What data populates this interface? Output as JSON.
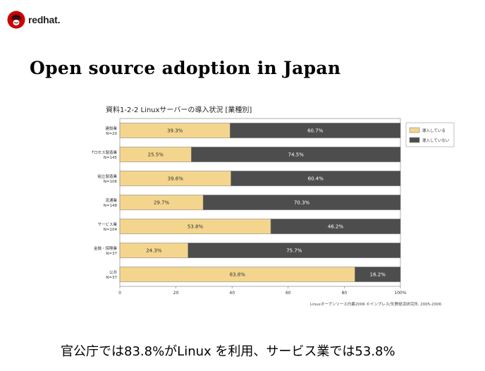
{
  "brand": {
    "name": "redhat."
  },
  "slide": {
    "title": "Open source adoption in Japan",
    "caption": "官公庁では83.8%がLinux を利用、サービス業では53.8%"
  },
  "figure": {
    "title": "資料1-2-2  Linuxサーバーの導入状況 [業種別]",
    "source": "Linuxオープンソース白書2006 ©インプレス/矢野経済研究所, 2005-2006"
  },
  "chart_data": {
    "type": "bar",
    "orientation": "horizontal",
    "stacked": true,
    "categories": [
      {
        "name": "建設業",
        "n": "N=20"
      },
      {
        "name": "プロセス製造業",
        "n": "N=145"
      },
      {
        "name": "組立製造業",
        "n": "N=106"
      },
      {
        "name": "流通業",
        "n": "N=148"
      },
      {
        "name": "サービス業",
        "n": "N=104"
      },
      {
        "name": "金融・保険業",
        "n": "N=37"
      },
      {
        "name": "公共",
        "n": "N=37"
      }
    ],
    "series": [
      {
        "name": "導入している",
        "values": [
          39.3,
          25.5,
          39.6,
          29.7,
          53.8,
          24.3,
          83.8
        ],
        "labels": [
          "39.3%",
          "25.5%",
          "39.6%",
          "29.7%",
          "53.8%",
          "24.3%",
          "83.8%"
        ],
        "color": "#f3d58d"
      },
      {
        "name": "導入していない",
        "values": [
          60.7,
          74.5,
          60.4,
          70.3,
          46.2,
          75.7,
          16.2
        ],
        "labels": [
          "60.7%",
          "74.5%",
          "60.4%",
          "70.3%",
          "46.2%",
          "75.7%",
          "16.2%"
        ],
        "color": "#4d4d4d"
      }
    ],
    "xlim": [
      0,
      100
    ],
    "xticks": [
      "0",
      "20",
      "40",
      "60",
      "80",
      "100%"
    ],
    "legend_position": "top-right",
    "grid": false
  }
}
